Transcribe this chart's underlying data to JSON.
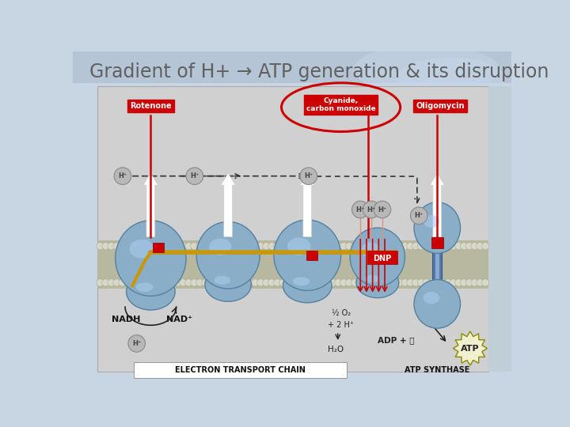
{
  "title": "Gradient of H+ → ATP generation & its disruption",
  "title_fontsize": 20,
  "title_color": "#606060",
  "slide_bg": "#c8d5e2",
  "title_bg": "#b5c5d5",
  "diag_bg": "#d0d0d0",
  "labels": {
    "rotenone": "Rotenone",
    "cyanide": "Cyanide,\ncarbon monoxide",
    "oligomycin": "Oligomycin",
    "dnp": "DNP",
    "nadh": "NADH",
    "nad": "NAD⁺",
    "h2o": "H₂O",
    "adp": "ADP + Ⓟ",
    "atp": "ATP",
    "etc": "ELECTRON TRANSPORT CHAIN",
    "atp_synthase": "ATP SYNTHASE",
    "half_o2": "½ O₂",
    "plus_2h": "+ 2 H⁺"
  },
  "colors": {
    "red": "#cc0000",
    "white": "#ffffff",
    "gold": "#c8980a",
    "sphere_fill": "#8aaec8",
    "sphere_edge": "#5580a0",
    "sphere_hi": "#aaccee",
    "mem_fill": "#b0b098",
    "mem_circle": "#c8c8b8",
    "atp_stalk": "#4477aa",
    "dark": "#222222",
    "gray_circle": "#b0b0b0",
    "gray_circ_edge": "#888888",
    "gray_circ_text": "#555555",
    "dnp_red": "#cc0000",
    "salmon": "#f09080"
  }
}
